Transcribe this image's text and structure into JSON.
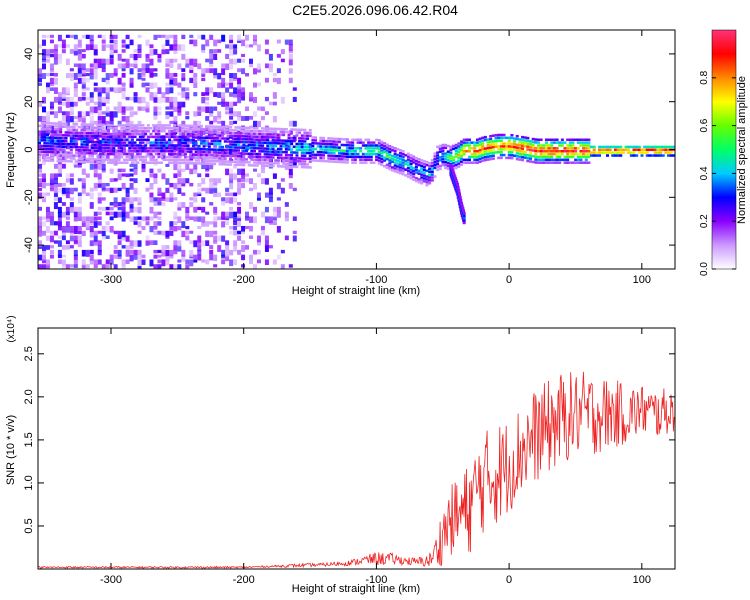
{
  "title": "C2E5.2026.096.06.42.R04",
  "colormap": {
    "label": "Normalized spectral amplitude",
    "ticks": [
      0.0,
      0.2,
      0.4,
      0.6,
      0.8
    ],
    "tick_labels": [
      "0.0",
      "0.2",
      "0.4",
      "0.6",
      "0.8"
    ],
    "range": [
      0.0,
      1.0
    ],
    "stops": [
      "#ffffff",
      "#cc99ff",
      "#8800ff",
      "#0000ff",
      "#00ccff",
      "#00ff66",
      "#66ff00",
      "#ffff00",
      "#ff8800",
      "#ff0000",
      "#ff3377"
    ]
  },
  "chart_data": [
    {
      "type": "heatmap",
      "xlabel": "Height of straight line (km)",
      "ylabel": "Frequency (Hz)",
      "xlim": [
        -355,
        125
      ],
      "ylim": [
        -50,
        50
      ],
      "x_ticks": [
        -300,
        -200,
        -100,
        0,
        100
      ],
      "x_tick_labels": [
        "-300",
        "-200",
        "-100",
        "0",
        "100"
      ],
      "y_ticks": [
        -40,
        -20,
        0,
        20,
        40
      ],
      "y_tick_labels": [
        "-40",
        "-20",
        "0",
        "20",
        "40"
      ],
      "ridge": {
        "x": [
          -355,
          -300,
          -250,
          -200,
          -150,
          -120,
          -100,
          -90,
          -80,
          -70,
          -60,
          -55,
          -50,
          -45,
          -40,
          -35,
          -30,
          -25,
          -20,
          -10,
          0,
          10,
          20,
          40,
          60,
          80,
          100,
          125
        ],
        "freq": [
          4,
          3,
          3,
          2,
          1,
          0,
          0,
          -3,
          -5,
          -8,
          -10,
          -3,
          -2,
          -3,
          -2,
          0,
          0,
          0,
          1,
          2,
          2,
          1,
          0,
          0,
          0,
          0,
          0,
          0
        ],
        "amplitude": [
          0.32,
          0.3,
          0.32,
          0.34,
          0.42,
          0.45,
          0.5,
          0.5,
          0.45,
          0.42,
          0.4,
          0.4,
          0.45,
          0.55,
          0.7,
          0.8,
          0.85,
          0.9,
          0.9,
          0.85,
          0.9,
          0.95,
          0.95,
          0.95,
          0.95,
          0.95,
          0.95,
          0.95
        ]
      },
      "noise_region": {
        "x_range": [
          -355,
          -160
        ],
        "freq_range": [
          -50,
          50
        ],
        "amplitude_range": [
          0.05,
          0.3
        ]
      },
      "branch": {
        "x": [
          -45,
          -40,
          -37,
          -35
        ],
        "freq": [
          -8,
          -16,
          -24,
          -28
        ],
        "amplitude": 0.35
      }
    },
    {
      "type": "line",
      "xlabel": "Height of straight line (km)",
      "ylabel": "SNR (10 * v/v)",
      "y_multiplier_label": "(x10⁴)",
      "xlim": [
        -355,
        125
      ],
      "ylim": [
        0,
        2.8
      ],
      "x_ticks": [
        -300,
        -200,
        -100,
        0,
        100
      ],
      "x_tick_labels": [
        "-300",
        "-200",
        "-100",
        "0",
        "100"
      ],
      "y_ticks": [
        0.5,
        1.0,
        1.5,
        2.0,
        2.5
      ],
      "y_tick_labels": [
        "0.5",
        "1.0",
        "1.5",
        "2.0",
        "2.5"
      ],
      "color": "#ee2222",
      "series": [
        {
          "x": [
            -355,
            -300,
            -250,
            -200,
            -180,
            -160,
            -140,
            -120,
            -110,
            -100,
            -90,
            -80,
            -70,
            -60,
            -55,
            -50,
            -45,
            -40,
            -35,
            -30,
            -25,
            -20,
            -15,
            -10,
            -5,
            0,
            10,
            20,
            30,
            40,
            50,
            60,
            70,
            80,
            90,
            100,
            110,
            125
          ],
          "mid": [
            0.02,
            0.02,
            0.02,
            0.02,
            0.03,
            0.04,
            0.05,
            0.07,
            0.1,
            0.12,
            0.12,
            0.1,
            0.08,
            0.1,
            0.2,
            0.4,
            0.55,
            0.6,
            0.65,
            0.7,
            0.9,
            1.0,
            1.05,
            1.1,
            1.15,
            1.2,
            1.4,
            1.55,
            1.65,
            1.75,
            1.8,
            1.8,
            1.8,
            1.8,
            1.8,
            1.85,
            1.8,
            1.85
          ],
          "amp": [
            0.01,
            0.01,
            0.01,
            0.01,
            0.01,
            0.02,
            0.02,
            0.03,
            0.05,
            0.08,
            0.07,
            0.05,
            0.05,
            0.08,
            0.2,
            0.35,
            0.4,
            0.45,
            0.5,
            0.55,
            0.55,
            0.6,
            0.6,
            0.6,
            0.6,
            0.55,
            0.55,
            0.55,
            0.55,
            0.55,
            0.5,
            0.5,
            0.45,
            0.4,
            0.35,
            0.3,
            0.3,
            0.25
          ]
        }
      ]
    }
  ]
}
